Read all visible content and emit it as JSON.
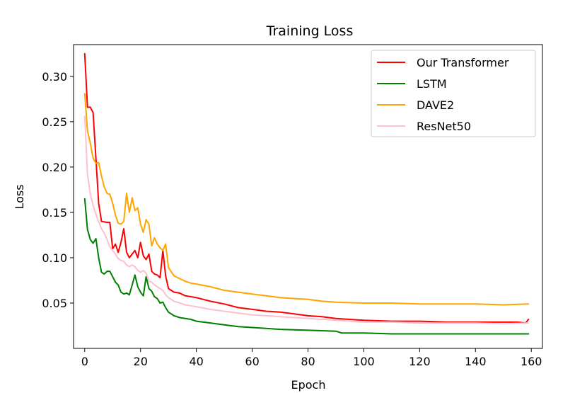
{
  "chart_data": {
    "type": "line",
    "title": "Training Loss",
    "xlabel": "Epoch",
    "ylabel": "Loss",
    "xlim": [
      -4,
      164
    ],
    "ylim": [
      0.0,
      0.335
    ],
    "xticks": [
      0,
      20,
      40,
      60,
      80,
      100,
      120,
      140,
      160
    ],
    "yticks": [
      0.05,
      0.1,
      0.15,
      0.2,
      0.25,
      0.3
    ],
    "ytick_labels": [
      "0.05",
      "0.10",
      "0.15",
      "0.20",
      "0.25",
      "0.30"
    ],
    "grid": false,
    "legend_position": "top-right",
    "series": [
      {
        "name": "Our Transformer",
        "color": "#ff0000",
        "points": [
          [
            0,
            0.325
          ],
          [
            1,
            0.266
          ],
          [
            2,
            0.266
          ],
          [
            3,
            0.26
          ],
          [
            4,
            0.21
          ],
          [
            5,
            0.16
          ],
          [
            6,
            0.14
          ],
          [
            8,
            0.139
          ],
          [
            9,
            0.139
          ],
          [
            10,
            0.11
          ],
          [
            11,
            0.115
          ],
          [
            12,
            0.106
          ],
          [
            13,
            0.117
          ],
          [
            14,
            0.132
          ],
          [
            15,
            0.106
          ],
          [
            16,
            0.1
          ],
          [
            17,
            0.104
          ],
          [
            18,
            0.108
          ],
          [
            19,
            0.1
          ],
          [
            20,
            0.117
          ],
          [
            21,
            0.102
          ],
          [
            22,
            0.098
          ],
          [
            23,
            0.104
          ],
          [
            24,
            0.085
          ],
          [
            25,
            0.082
          ],
          [
            26,
            0.081
          ],
          [
            27,
            0.078
          ],
          [
            28,
            0.108
          ],
          [
            29,
            0.08
          ],
          [
            30,
            0.066
          ],
          [
            32,
            0.062
          ],
          [
            34,
            0.061
          ],
          [
            36,
            0.058
          ],
          [
            38,
            0.057
          ],
          [
            40,
            0.056
          ],
          [
            45,
            0.052
          ],
          [
            50,
            0.049
          ],
          [
            55,
            0.045
          ],
          [
            60,
            0.043
          ],
          [
            65,
            0.041
          ],
          [
            70,
            0.04
          ],
          [
            75,
            0.038
          ],
          [
            80,
            0.036
          ],
          [
            85,
            0.035
          ],
          [
            90,
            0.033
          ],
          [
            100,
            0.031
          ],
          [
            110,
            0.03
          ],
          [
            120,
            0.03
          ],
          [
            130,
            0.029
          ],
          [
            140,
            0.029
          ],
          [
            150,
            0.029
          ],
          [
            155,
            0.029
          ],
          [
            158,
            0.028
          ],
          [
            159,
            0.032
          ]
        ]
      },
      {
        "name": "LSTM",
        "color": "#008000",
        "points": [
          [
            0,
            0.165
          ],
          [
            1,
            0.131
          ],
          [
            2,
            0.12
          ],
          [
            3,
            0.116
          ],
          [
            4,
            0.121
          ],
          [
            5,
            0.1
          ],
          [
            6,
            0.084
          ],
          [
            7,
            0.082
          ],
          [
            8,
            0.085
          ],
          [
            9,
            0.085
          ],
          [
            10,
            0.079
          ],
          [
            11,
            0.073
          ],
          [
            12,
            0.07
          ],
          [
            13,
            0.062
          ],
          [
            14,
            0.06
          ],
          [
            15,
            0.061
          ],
          [
            16,
            0.059
          ],
          [
            17,
            0.07
          ],
          [
            18,
            0.081
          ],
          [
            19,
            0.068
          ],
          [
            20,
            0.062
          ],
          [
            21,
            0.058
          ],
          [
            22,
            0.079
          ],
          [
            23,
            0.066
          ],
          [
            24,
            0.063
          ],
          [
            25,
            0.057
          ],
          [
            26,
            0.055
          ],
          [
            27,
            0.05
          ],
          [
            28,
            0.051
          ],
          [
            29,
            0.045
          ],
          [
            30,
            0.04
          ],
          [
            32,
            0.036
          ],
          [
            34,
            0.034
          ],
          [
            36,
            0.033
          ],
          [
            38,
            0.032
          ],
          [
            40,
            0.03
          ],
          [
            45,
            0.028
          ],
          [
            50,
            0.026
          ],
          [
            55,
            0.024
          ],
          [
            60,
            0.023
          ],
          [
            70,
            0.021
          ],
          [
            80,
            0.02
          ],
          [
            90,
            0.019
          ],
          [
            92,
            0.017
          ],
          [
            100,
            0.017
          ],
          [
            110,
            0.016
          ],
          [
            120,
            0.016
          ],
          [
            130,
            0.016
          ],
          [
            140,
            0.016
          ],
          [
            150,
            0.016
          ],
          [
            159,
            0.016
          ]
        ]
      },
      {
        "name": "DAVE2",
        "color": "#ffa500",
        "points": [
          [
            0,
            0.281
          ],
          [
            1,
            0.24
          ],
          [
            2,
            0.226
          ],
          [
            3,
            0.21
          ],
          [
            4,
            0.204
          ],
          [
            5,
            0.205
          ],
          [
            6,
            0.19
          ],
          [
            7,
            0.178
          ],
          [
            8,
            0.171
          ],
          [
            9,
            0.17
          ],
          [
            10,
            0.16
          ],
          [
            11,
            0.147
          ],
          [
            12,
            0.138
          ],
          [
            13,
            0.137
          ],
          [
            14,
            0.14
          ],
          [
            15,
            0.171
          ],
          [
            16,
            0.15
          ],
          [
            17,
            0.166
          ],
          [
            18,
            0.152
          ],
          [
            19,
            0.155
          ],
          [
            20,
            0.137
          ],
          [
            21,
            0.128
          ],
          [
            22,
            0.142
          ],
          [
            23,
            0.137
          ],
          [
            24,
            0.113
          ],
          [
            25,
            0.122
          ],
          [
            26,
            0.115
          ],
          [
            27,
            0.111
          ],
          [
            28,
            0.108
          ],
          [
            29,
            0.115
          ],
          [
            30,
            0.089
          ],
          [
            32,
            0.08
          ],
          [
            34,
            0.077
          ],
          [
            36,
            0.074
          ],
          [
            38,
            0.072
          ],
          [
            40,
            0.071
          ],
          [
            45,
            0.068
          ],
          [
            50,
            0.064
          ],
          [
            55,
            0.062
          ],
          [
            60,
            0.06
          ],
          [
            65,
            0.058
          ],
          [
            70,
            0.056
          ],
          [
            75,
            0.055
          ],
          [
            80,
            0.054
          ],
          [
            85,
            0.052
          ],
          [
            90,
            0.051
          ],
          [
            100,
            0.05
          ],
          [
            110,
            0.05
          ],
          [
            120,
            0.049
          ],
          [
            130,
            0.049
          ],
          [
            140,
            0.049
          ],
          [
            150,
            0.048
          ],
          [
            159,
            0.049
          ]
        ]
      },
      {
        "name": "ResNet50",
        "color": "#ffc0cb",
        "points": [
          [
            0,
            0.256
          ],
          [
            1,
            0.192
          ],
          [
            2,
            0.17
          ],
          [
            3,
            0.158
          ],
          [
            4,
            0.148
          ],
          [
            5,
            0.14
          ],
          [
            6,
            0.132
          ],
          [
            7,
            0.127
          ],
          [
            8,
            0.12
          ],
          [
            9,
            0.112
          ],
          [
            10,
            0.108
          ],
          [
            11,
            0.104
          ],
          [
            12,
            0.099
          ],
          [
            13,
            0.097
          ],
          [
            14,
            0.096
          ],
          [
            15,
            0.092
          ],
          [
            16,
            0.09
          ],
          [
            17,
            0.092
          ],
          [
            18,
            0.09
          ],
          [
            19,
            0.086
          ],
          [
            20,
            0.084
          ],
          [
            21,
            0.086
          ],
          [
            22,
            0.083
          ],
          [
            23,
            0.074
          ],
          [
            24,
            0.073
          ],
          [
            25,
            0.07
          ],
          [
            26,
            0.068
          ],
          [
            27,
            0.066
          ],
          [
            28,
            0.064
          ],
          [
            29,
            0.059
          ],
          [
            30,
            0.056
          ],
          [
            32,
            0.052
          ],
          [
            34,
            0.05
          ],
          [
            36,
            0.048
          ],
          [
            38,
            0.047
          ],
          [
            40,
            0.046
          ],
          [
            45,
            0.043
          ],
          [
            50,
            0.041
          ],
          [
            55,
            0.039
          ],
          [
            60,
            0.037
          ],
          [
            70,
            0.035
          ],
          [
            80,
            0.033
          ],
          [
            90,
            0.031
          ],
          [
            100,
            0.029
          ],
          [
            110,
            0.029
          ],
          [
            120,
            0.028
          ],
          [
            130,
            0.028
          ],
          [
            140,
            0.028
          ],
          [
            150,
            0.027
          ],
          [
            159,
            0.028
          ]
        ]
      }
    ]
  }
}
